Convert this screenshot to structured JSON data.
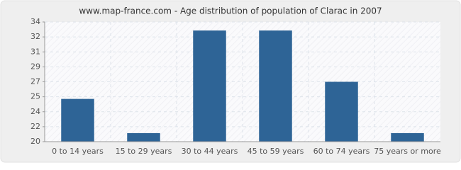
{
  "chart_data": {
    "type": "bar",
    "title": "www.map-france.com - Age distribution of population of Clarac in 2007",
    "categories": [
      "0 to 14 years",
      "15 to 29 years",
      "30 to 44 years",
      "45 to 59 years",
      "60 to 74 years",
      "75 years or more"
    ],
    "values": [
      25,
      21,
      33,
      33,
      27,
      21
    ],
    "color": "#2e6496",
    "ylim": [
      20,
      34
    ],
    "yticks": [
      20,
      {
        "value": 21.75,
        "label": "22"
      },
      {
        "value": 23.5,
        "label": "24"
      },
      {
        "value": 25.25,
        "label": "25"
      },
      27,
      {
        "value": 28.75,
        "label": "29"
      },
      {
        "value": 30.5,
        "label": "31"
      },
      {
        "value": 32.25,
        "label": "32"
      },
      34
    ],
    "grid": true
  }
}
